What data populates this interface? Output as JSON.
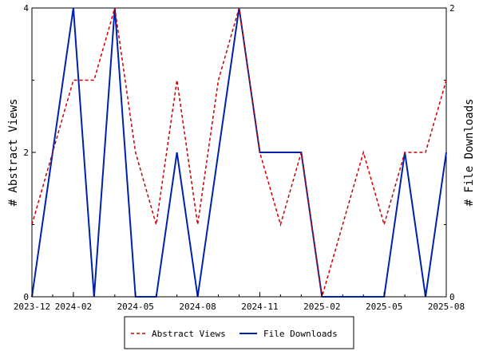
{
  "chart_data": {
    "type": "line",
    "title": "",
    "xlabel": "",
    "y_left_label": "# Abstract Views",
    "y_right_label": "# File Downloads",
    "x_ticks": [
      "2023-12",
      "2024-02",
      "2024-05",
      "2024-08",
      "2024-11",
      "2025-02",
      "2025-05",
      "2025-08"
    ],
    "x_tick_index": [
      0,
      2,
      5,
      8,
      11,
      14,
      17,
      20
    ],
    "y_left_ticks": [
      0,
      2,
      4
    ],
    "y_right_ticks": [
      0,
      2
    ],
    "y_left_range": [
      0,
      4
    ],
    "y_right_range": [
      0,
      2
    ],
    "x": [
      "2023-12",
      "2024-01",
      "2024-02",
      "2024-03",
      "2024-04",
      "2024-05",
      "2024-06",
      "2024-07",
      "2024-08",
      "2024-09",
      "2024-10",
      "2024-11",
      "2024-12",
      "2025-01",
      "2025-02",
      "2025-03",
      "2025-04",
      "2025-05",
      "2025-06",
      "2025-07",
      "2025-08"
    ],
    "series": [
      {
        "name": "Abstract Views",
        "axis": "left",
        "color": "#cc0000",
        "dash": true,
        "values": [
          1,
          2,
          3,
          3,
          4,
          2,
          1,
          3,
          1,
          3,
          4,
          2,
          1,
          2,
          0,
          1,
          2,
          1,
          2,
          2,
          3
        ]
      },
      {
        "name": "File Downloads",
        "axis": "right",
        "color": "#0022aa",
        "dash": false,
        "values": [
          0,
          1,
          2,
          0,
          2,
          0,
          0,
          1,
          0,
          1,
          2,
          1,
          1,
          1,
          0,
          0,
          0,
          0,
          1,
          0,
          1
        ]
      }
    ],
    "grid": false,
    "legend_position": "bottom"
  }
}
